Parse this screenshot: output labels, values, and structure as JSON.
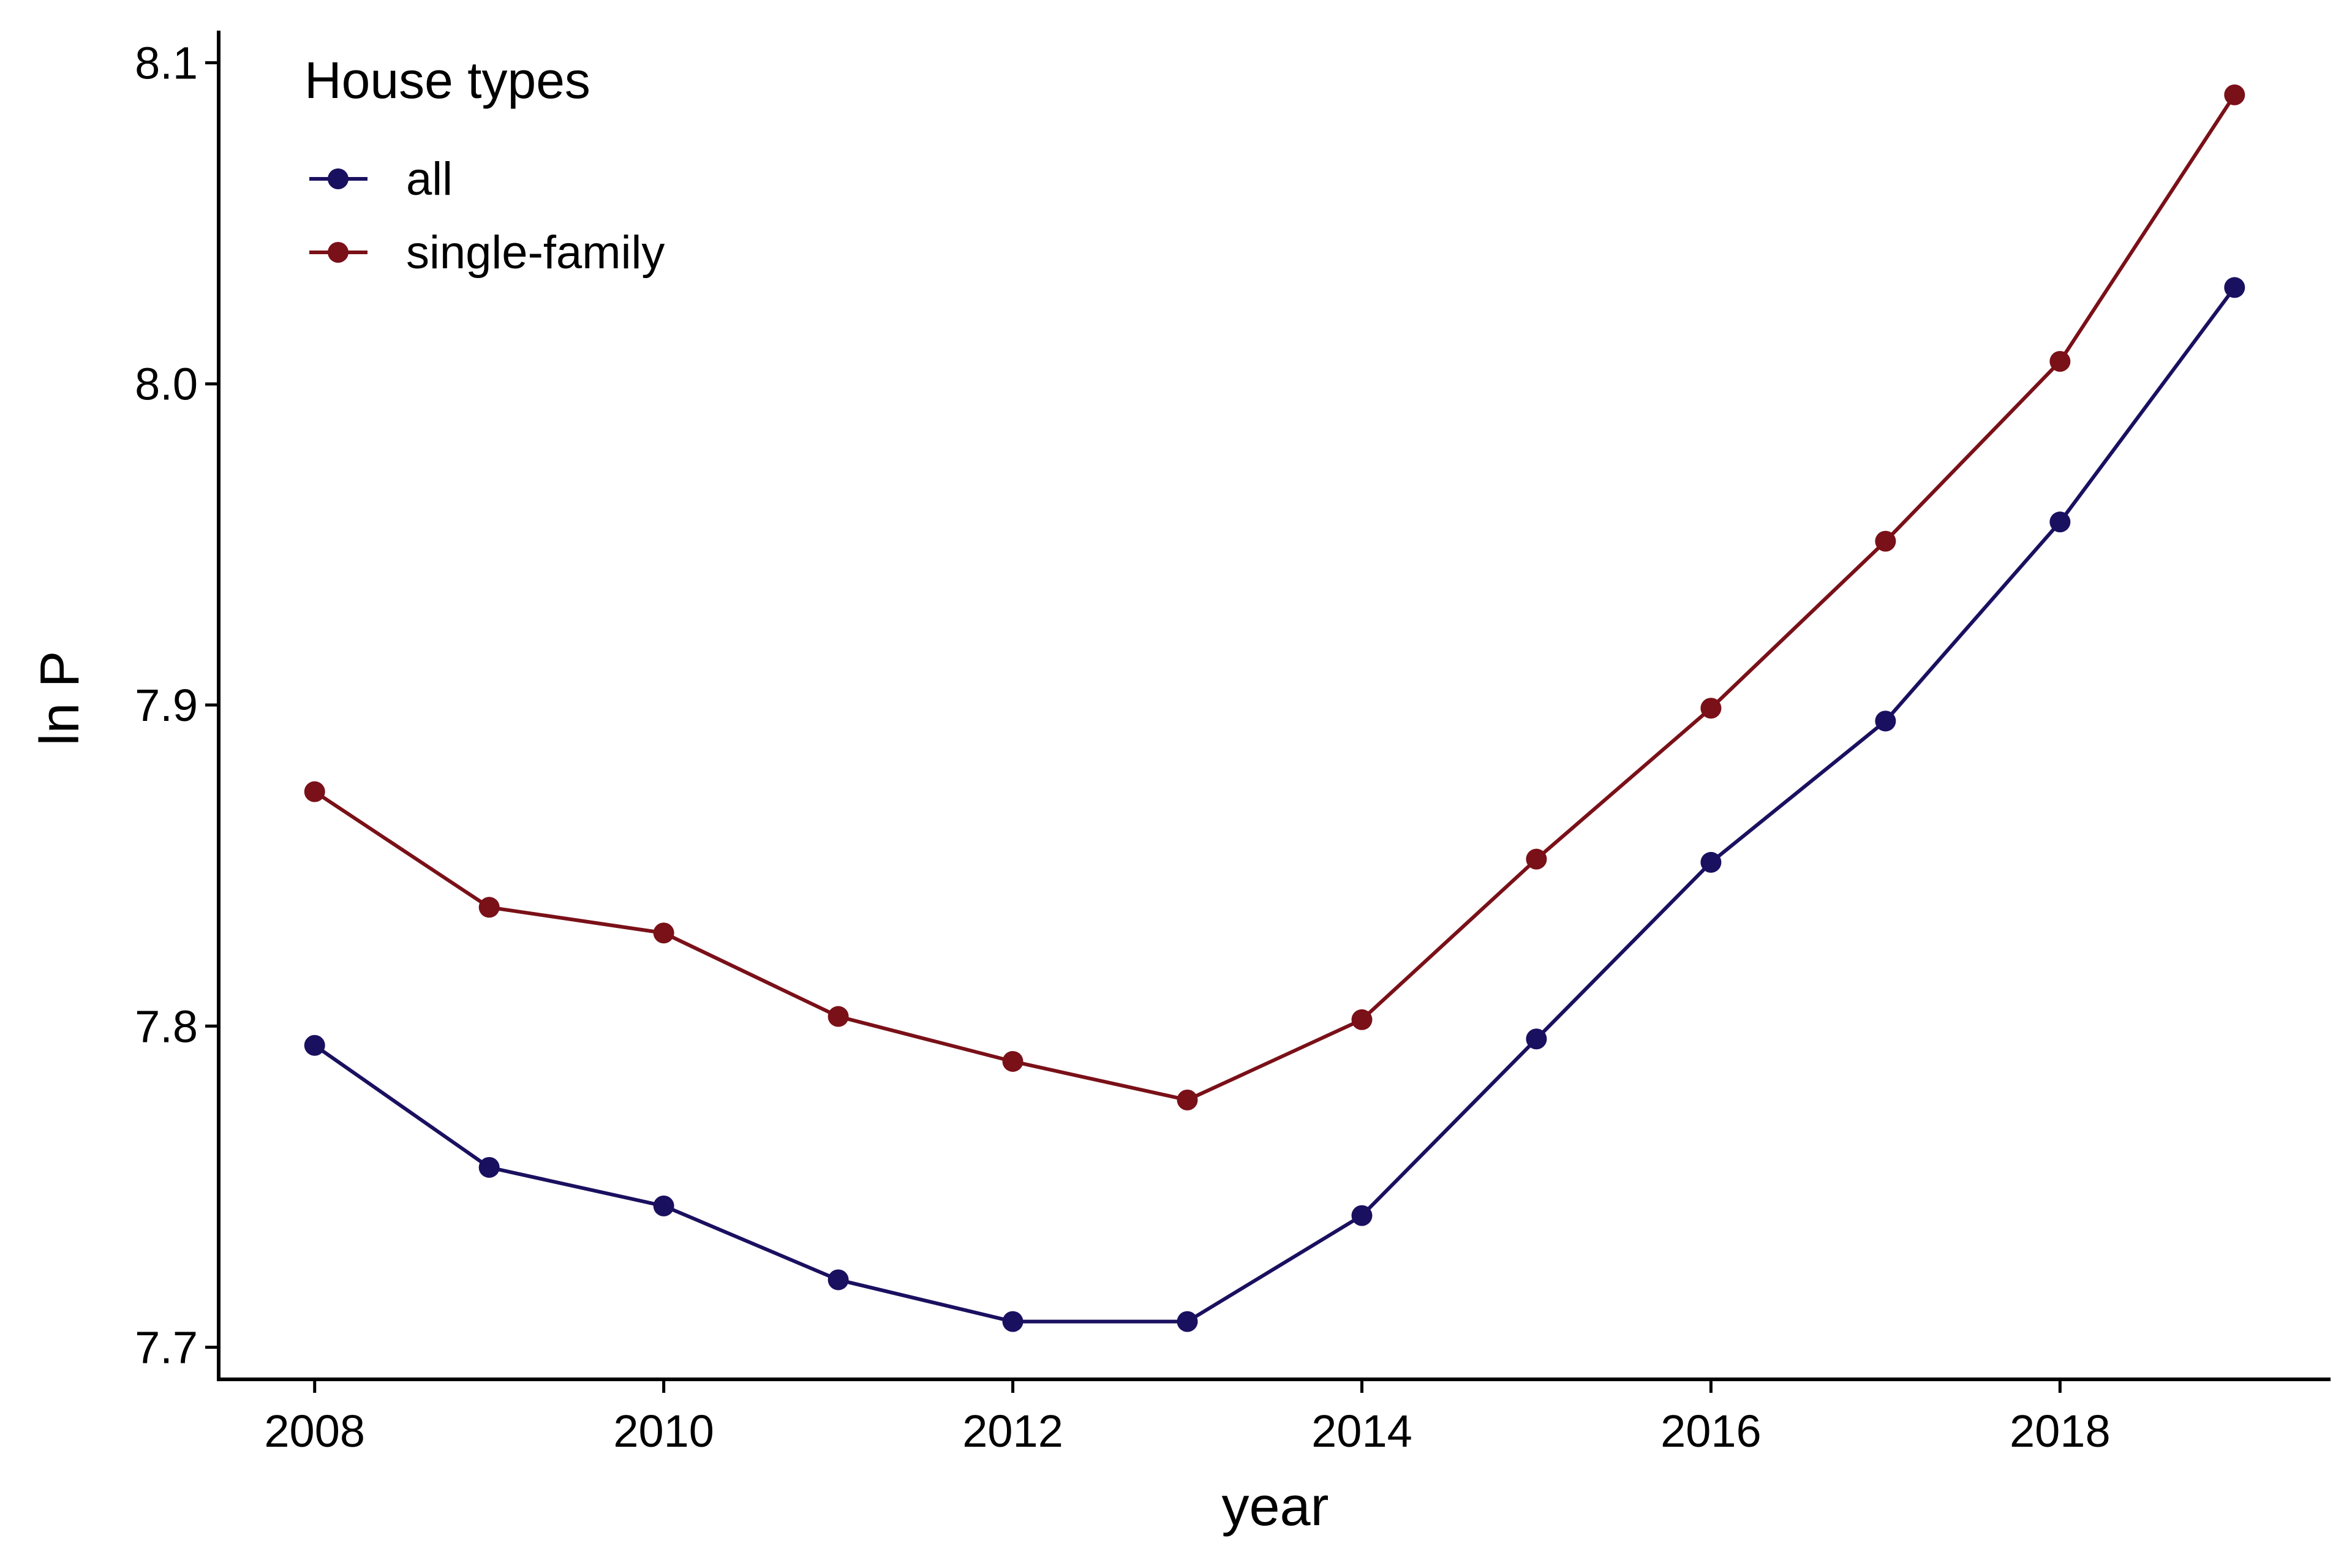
{
  "chart_data": {
    "type": "line",
    "title": "",
    "xlabel": "year",
    "ylabel": "ln P",
    "x": [
      2008,
      2009,
      2010,
      2011,
      2012,
      2013,
      2014,
      2015,
      2016,
      2017,
      2018,
      2019
    ],
    "xlim": [
      2007.45,
      2019.55
    ],
    "ylim": [
      7.69,
      8.11
    ],
    "x_ticks": [
      2008,
      2010,
      2012,
      2014,
      2016,
      2018
    ],
    "x_tick_labels": [
      "2008",
      "2010",
      "2012",
      "2014",
      "2016",
      "2018"
    ],
    "y_ticks": [
      7.7,
      7.8,
      7.9,
      8.0,
      8.1
    ],
    "y_tick_labels": [
      "7.7",
      "7.8",
      "7.9",
      "8.0",
      "8.1"
    ],
    "grid": false,
    "legend": {
      "title": "House types",
      "placement": "top-left"
    },
    "series": [
      {
        "name": "all",
        "color": "#1a1060",
        "values": [
          7.794,
          7.756,
          7.744,
          7.721,
          7.708,
          7.708,
          7.741,
          7.796,
          7.851,
          7.895,
          7.957,
          8.03
        ]
      },
      {
        "name": "single-family",
        "color": "#7a1018",
        "values": [
          7.873,
          7.837,
          7.829,
          7.803,
          7.789,
          7.777,
          7.802,
          7.852,
          7.899,
          7.951,
          8.007,
          8.09
        ]
      }
    ]
  }
}
